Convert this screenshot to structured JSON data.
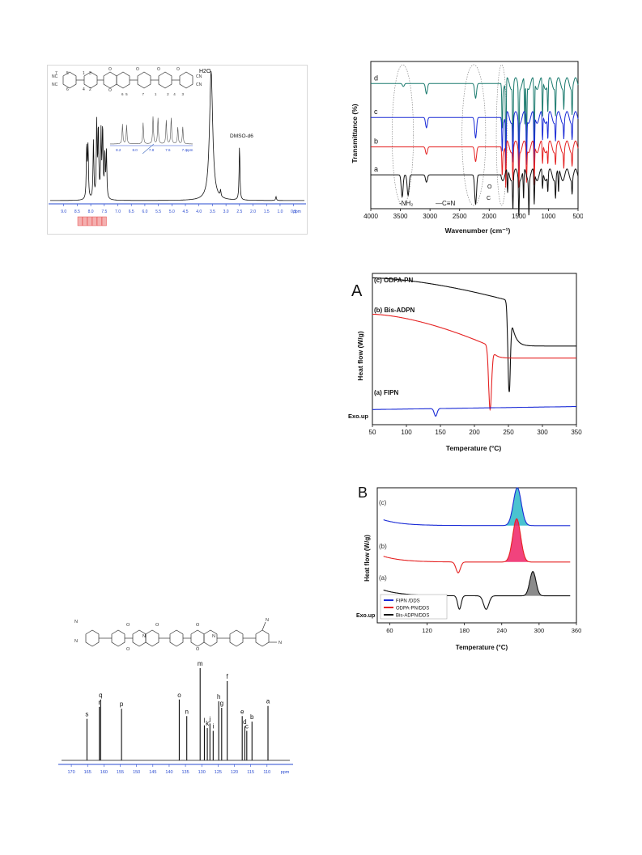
{
  "chart_data": [
    {
      "id": "hnmr",
      "type": "line",
      "title": "",
      "xlabel": "ppm",
      "xlim": [
        9.5,
        0.1
      ],
      "x_reversed": true,
      "xticks": [
        "9.0",
        "8.5",
        "8.0",
        "7.5",
        "7.0",
        "6.5",
        "6.0",
        "5.5",
        "5.0",
        "4.5",
        "4.0",
        "3.5",
        "3.0",
        "2.5",
        "2.0",
        "1.5",
        "1.0",
        "0.5",
        "ppm"
      ],
      "xtick_values": [
        9.0,
        8.5,
        8.0,
        7.5,
        7.0,
        6.5,
        6.0,
        5.5,
        5.0,
        4.5,
        4.0,
        3.5,
        3.0,
        2.5,
        2.0,
        1.5,
        1.0,
        0.5
      ],
      "peaks": [
        {
          "x": 8.15,
          "h": 0.42
        },
        {
          "x": 8.1,
          "h": 0.4
        },
        {
          "x": 7.9,
          "h": 0.45
        },
        {
          "x": 7.78,
          "h": 0.58
        },
        {
          "x": 7.72,
          "h": 0.55
        },
        {
          "x": 7.62,
          "h": 0.5
        },
        {
          "x": 7.56,
          "h": 0.55
        },
        {
          "x": 7.48,
          "h": 0.35
        },
        {
          "x": 7.42,
          "h": 0.36
        },
        {
          "x": 3.55,
          "h": 1.0
        },
        {
          "x": 3.2,
          "h": 0.05
        },
        {
          "x": 2.5,
          "h": 0.42
        },
        {
          "x": 1.15,
          "h": 0.03
        }
      ],
      "annotations": [
        "H2O",
        "DMSO-d6"
      ],
      "inset_xticks": [
        "8.2",
        "8.0",
        "7.8",
        "7.6",
        "7.4",
        "ppm"
      ],
      "inset_peak_labels": [
        "6",
        "5",
        "7",
        "1",
        "2",
        "4",
        "3"
      ],
      "structure_labels": [
        "NC",
        "NC",
        "7",
        "5",
        "6",
        "1",
        "3",
        "4",
        "2",
        "O",
        "O",
        "O",
        "O",
        "O",
        "CN",
        "CN"
      ]
    },
    {
      "id": "ftir",
      "type": "line",
      "xlabel": "Wavenumber (cm⁻¹)",
      "ylabel": "Transmittance (%)",
      "xlim": [
        4000,
        500
      ],
      "xticks": [
        4000,
        3500,
        3000,
        2500,
        2000,
        1500,
        1000,
        500
      ],
      "series": [
        {
          "name": "d",
          "color": "#1a7a6e",
          "offset": 0.85,
          "dips": [
            [
              3450,
              0.02
            ],
            [
              3060,
              0.07
            ],
            [
              2230,
              0.1
            ],
            [
              1780,
              0.28
            ],
            [
              1720,
              0.55
            ],
            [
              1600,
              0.4
            ],
            [
              1500,
              0.45
            ],
            [
              1400,
              0.32
            ],
            [
              1370,
              0.4
            ],
            [
              1240,
              0.5
            ],
            [
              1100,
              0.25
            ],
            [
              1010,
              0.2
            ],
            [
              880,
              0.2
            ],
            [
              740,
              0.15
            ],
            [
              600,
              0.18
            ]
          ]
        },
        {
          "name": "c",
          "color": "#1a2bd6",
          "offset": 0.62,
          "dips": [
            [
              3060,
              0.07
            ],
            [
              2230,
              0.14
            ],
            [
              1780,
              0.2
            ],
            [
              1720,
              0.42
            ],
            [
              1600,
              0.3
            ],
            [
              1500,
              0.35
            ],
            [
              1370,
              0.32
            ],
            [
              1240,
              0.38
            ],
            [
              1100,
              0.18
            ],
            [
              1010,
              0.15
            ],
            [
              880,
              0.14
            ],
            [
              740,
              0.12
            ],
            [
              600,
              0.12
            ]
          ]
        },
        {
          "name": "b",
          "color": "#e52222",
          "offset": 0.42,
          "dips": [
            [
              3060,
              0.05
            ],
            [
              2230,
              0.1
            ],
            [
              1780,
              0.16
            ],
            [
              1720,
              0.3
            ],
            [
              1600,
              0.22
            ],
            [
              1500,
              0.26
            ],
            [
              1370,
              0.24
            ],
            [
              1240,
              0.28
            ],
            [
              1100,
              0.14
            ],
            [
              1010,
              0.12
            ],
            [
              880,
              0.1
            ],
            [
              740,
              0.12
            ],
            [
              600,
              0.1
            ]
          ]
        },
        {
          "name": "a",
          "color": "#111111",
          "offset": 0.23,
          "dips": [
            [
              3470,
              0.15
            ],
            [
              3370,
              0.14
            ],
            [
              3060,
              0.05
            ],
            [
              2230,
              0.2
            ],
            [
              1690,
              0.16
            ],
            [
              1600,
              0.22
            ],
            [
              1500,
              0.26
            ],
            [
              1420,
              0.2
            ],
            [
              1330,
              0.24
            ],
            [
              1240,
              0.22
            ],
            [
              1100,
              0.12
            ],
            [
              1010,
              0.12
            ],
            [
              880,
              0.14
            ],
            [
              830,
              0.16
            ],
            [
              600,
              0.1
            ]
          ]
        }
      ],
      "annotations": [
        "-NH₂",
        "—C≡N",
        "O",
        "C"
      ]
    },
    {
      "id": "dsc-a",
      "type": "line",
      "panel_label": "A",
      "xlabel": "Temperature (°C)",
      "ylabel": "Heat flow (W/g)",
      "xlim": [
        50,
        350
      ],
      "xticks": [
        50,
        100,
        150,
        200,
        250,
        300,
        350
      ],
      "exo_label": "Exo.up",
      "series": [
        {
          "name": "(c) ODPA-PN",
          "color": "#111111",
          "base": [
            0.97,
            0.82
          ],
          "dip": {
            "x": 251,
            "depth": 0.6,
            "width": 2.5
          },
          "after": 0.52
        },
        {
          "name": "(b) Bis-ADPN",
          "color": "#e52222",
          "base": [
            0.73,
            0.52
          ],
          "dip": {
            "x": 223,
            "depth": 0.42,
            "width": 3
          },
          "after": 0.44
        },
        {
          "name": "(a) FIPN",
          "color": "#1a2bd6",
          "base": [
            0.1,
            0.1
          ],
          "dip": {
            "x": 143,
            "depth": 0.05,
            "width": 3
          },
          "after": 0.1,
          "rise": 0.02
        }
      ]
    },
    {
      "id": "dsc-b",
      "type": "line",
      "panel_label": "B",
      "xlabel": "Temperature (°C)",
      "ylabel": "Heat flow (W/g)",
      "xlim": [
        40,
        360
      ],
      "xticks": [
        60,
        120,
        180,
        240,
        300,
        360
      ],
      "exo_label": "Exo.up",
      "curve_labels": [
        "(c)",
        "(b)",
        "(a)"
      ],
      "legend": [
        {
          "name": "FIPN /DDS",
          "color": "#1a2bd6"
        },
        {
          "name": "ODPA-PN/DDS",
          "color": "#e52222"
        },
        {
          "name": "Bis-ADPN/DDS",
          "color": "#111111"
        }
      ],
      "series": [
        {
          "name": "FIPN /DDS",
          "color": "#1a2bd6",
          "fill": "#2ab8c8",
          "base": 0.72,
          "exo": {
            "x": 265,
            "h": 0.28,
            "w": 9
          }
        },
        {
          "name": "ODPA-PN/DDS",
          "color": "#e52222",
          "fill": "#ee2266",
          "base": 0.45,
          "exo": {
            "x": 264,
            "h": 0.32,
            "w": 9
          },
          "endo": [
            {
              "x": 170,
              "d": 0.08,
              "w": 5
            }
          ]
        },
        {
          "name": "Bis-ADPN/DDS",
          "color": "#111111",
          "fill": "#777777",
          "base": 0.2,
          "exo": {
            "x": 290,
            "h": 0.18,
            "w": 7
          },
          "endo": [
            {
              "x": 172,
              "d": 0.1,
              "w": 4
            },
            {
              "x": 215,
              "d": 0.1,
              "w": 6
            }
          ]
        }
      ]
    },
    {
      "id": "cnmr",
      "type": "line",
      "xlim": [
        173,
        103
      ],
      "x_reversed": true,
      "xticks": [
        "170",
        "165",
        "160",
        "155",
        "150",
        "145",
        "140",
        "135",
        "130",
        "125",
        "120",
        "115",
        "110",
        "ppm"
      ],
      "xtick_values": [
        170,
        165,
        160,
        155,
        150,
        145,
        140,
        135,
        130,
        125,
        120,
        115,
        110
      ],
      "peaks": [
        {
          "label": "s",
          "x": 165.2,
          "h": 0.45
        },
        {
          "label": "r",
          "x": 161.4,
          "h": 0.58
        },
        {
          "label": "q",
          "x": 161.0,
          "h": 0.66
        },
        {
          "label": "p",
          "x": 154.6,
          "h": 0.56
        },
        {
          "label": "o",
          "x": 136.9,
          "h": 0.66
        },
        {
          "label": "n",
          "x": 134.6,
          "h": 0.48
        },
        {
          "label": "m",
          "x": 130.5,
          "h": 1.0
        },
        {
          "label": "l",
          "x": 129.2,
          "h": 0.38
        },
        {
          "label": "k",
          "x": 128.3,
          "h": 0.35
        },
        {
          "label": "j",
          "x": 127.5,
          "h": 0.4
        },
        {
          "label": "i",
          "x": 126.5,
          "h": 0.32
        },
        {
          "label": "h",
          "x": 124.8,
          "h": 0.64
        },
        {
          "label": "g",
          "x": 123.9,
          "h": 0.57
        },
        {
          "label": "f",
          "x": 122.2,
          "h": 0.86
        },
        {
          "label": "e",
          "x": 117.6,
          "h": 0.48
        },
        {
          "label": "d",
          "x": 116.8,
          "h": 0.37
        },
        {
          "label": "c",
          "x": 116.2,
          "h": 0.32
        },
        {
          "label": "b",
          "x": 114.6,
          "h": 0.42
        },
        {
          "label": "a",
          "x": 109.7,
          "h": 0.59
        }
      ],
      "structure_labels": [
        "N",
        "N",
        "O",
        "O",
        "O",
        "O",
        "O",
        "N",
        "N",
        "N",
        "N"
      ]
    }
  ]
}
